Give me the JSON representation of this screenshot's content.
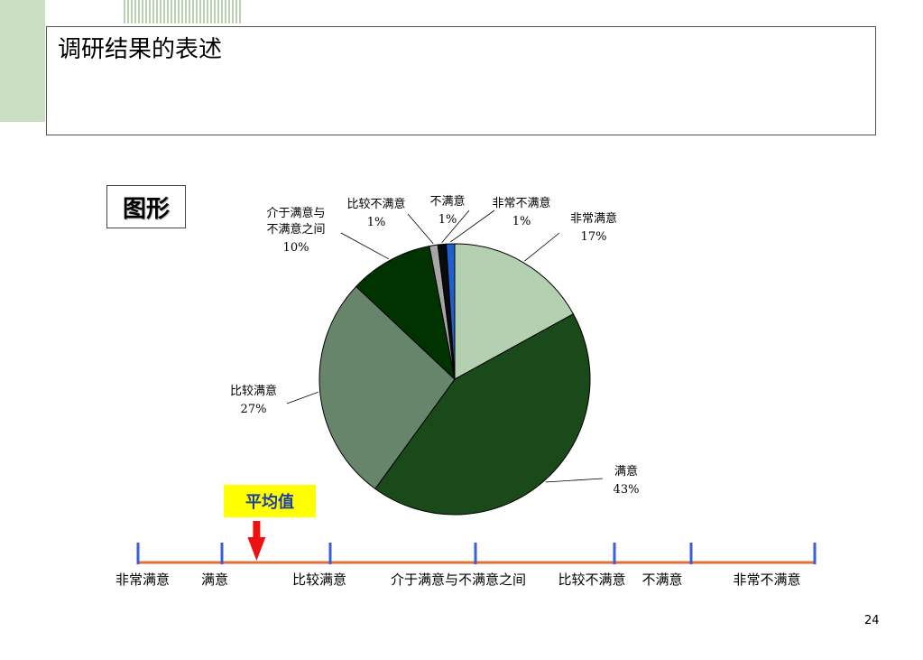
{
  "title": "调研结果的表述",
  "figure_label": "图形",
  "average_label": "平均值",
  "page_number": "24",
  "colors": {
    "slices": [
      "#b3d1b1",
      "#1a4a1a",
      "#67856a",
      "#003300",
      "#a6a6a6",
      "#0a0a0a",
      "#1f5fd0"
    ],
    "scale_line": "#e07030",
    "scale_tick": "#3a5fd8",
    "arrow": "#ee1111"
  },
  "chart_data": {
    "type": "pie",
    "slices": [
      {
        "label": "非常满意",
        "value": 17,
        "value_label": "17%"
      },
      {
        "label": "满意",
        "value": 43,
        "value_label": "43%"
      },
      {
        "label": "比较满意",
        "value": 27,
        "value_label": "27%"
      },
      {
        "label": "介于满意与不满意之间",
        "label_lines": [
          "介于满意与",
          "不满意之间"
        ],
        "value": 10,
        "value_label": "10%"
      },
      {
        "label": "比较不满意",
        "value": 1,
        "value_label": "1%"
      },
      {
        "label": "不满意",
        "value": 1,
        "value_label": "1%"
      },
      {
        "label": "非常不满意",
        "value": 1,
        "value_label": "1%"
      }
    ]
  },
  "scale": {
    "labels": [
      "非常满意",
      "满意",
      "比较满意",
      "介于满意与不满意之间",
      "比较不满意",
      "不满意",
      "非常不满意"
    ],
    "average_position": 1.32
  }
}
